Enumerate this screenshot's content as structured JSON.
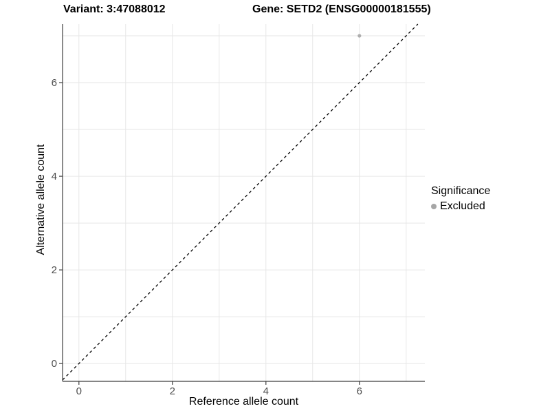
{
  "title": {
    "variant": "Variant: 3:47088012",
    "gene": "Gene: SETD2 (ENSG00000181555)"
  },
  "chart_data": {
    "type": "scatter",
    "title": "Variant: 3:47088012  Gene: SETD2 (ENSG00000181555)",
    "xlabel": "Reference allele count",
    "ylabel": "Alternative allele count",
    "xlim": [
      -0.35,
      7.4
    ],
    "ylim": [
      -0.38,
      7.25
    ],
    "x_ticks": [
      "0",
      "2",
      "4",
      "6"
    ],
    "y_ticks": [
      "0",
      "2",
      "4",
      "6"
    ],
    "x_tick_values": [
      0,
      2,
      4,
      6
    ],
    "y_tick_values": [
      0,
      2,
      4,
      6
    ],
    "grid_values": [
      0,
      1,
      2,
      3,
      4,
      5,
      6,
      7
    ],
    "grid": "on",
    "series": [
      {
        "name": "Excluded",
        "points": [
          {
            "x": 6,
            "y": 7
          }
        ],
        "color": "#aeaeae"
      }
    ],
    "reference_line": {
      "type": "identity",
      "slope": 1,
      "intercept": 0,
      "style": "dashed",
      "color": "#000000"
    },
    "legend": {
      "title": "Significance",
      "position": "right",
      "items": [
        {
          "label": "Excluded",
          "color": "#a6a6a6"
        }
      ]
    },
    "colors": {
      "grid": "#e6e6e6",
      "axis": "#3c3c3c",
      "tick_text": "#4d4d4d",
      "background": "#ffffff"
    }
  }
}
